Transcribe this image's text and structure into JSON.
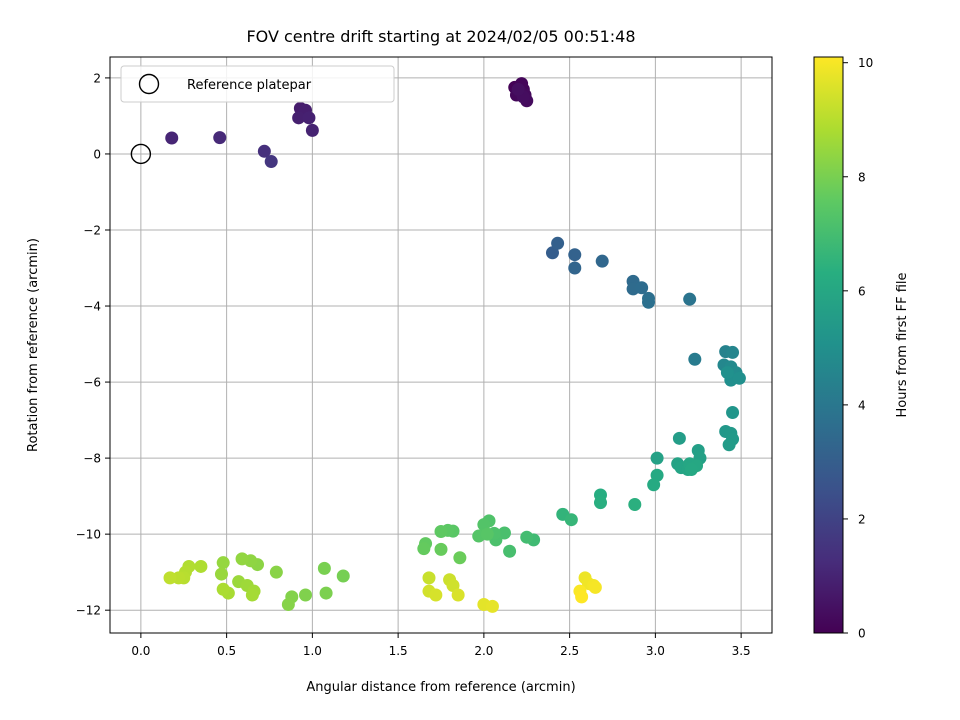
{
  "chart_data": {
    "type": "scatter",
    "title": "FOV centre drift starting at 2024/02/05 00:51:48",
    "xlabel": "Angular distance from reference (arcmin)",
    "ylabel": "Rotation from reference (arcmin)",
    "xlim": [
      -0.18,
      3.68
    ],
    "ylim": [
      -12.6,
      2.55
    ],
    "xticks": [
      0.0,
      0.5,
      1.0,
      1.5,
      2.0,
      2.5,
      3.0,
      3.5
    ],
    "xtick_labels": [
      "0.0",
      "0.5",
      "1.0",
      "1.5",
      "2.0",
      "2.5",
      "3.0",
      "3.5"
    ],
    "yticks": [
      2,
      0,
      -2,
      -4,
      -6,
      -8,
      -10,
      -12
    ],
    "ytick_labels": [
      "2",
      "0",
      "−2",
      "−4",
      "−6",
      "−8",
      "−10",
      "−12"
    ],
    "grid": true,
    "colorbar": {
      "label": "Hours from first FF file",
      "colormap": "viridis",
      "range": [
        0,
        10.1
      ],
      "ticks": [
        0,
        2,
        4,
        6,
        8,
        10
      ],
      "tick_labels": [
        "0",
        "2",
        "4",
        "6",
        "8",
        "10"
      ]
    },
    "legend": {
      "position": "top-left",
      "entries": [
        {
          "label": "Reference platepar",
          "marker": "open-circle"
        }
      ]
    },
    "reference_point": {
      "x": 0.0,
      "y": 0.0
    },
    "points": [
      {
        "x": 2.18,
        "y": 1.75,
        "c": 0.05
      },
      {
        "x": 2.2,
        "y": 1.6,
        "c": 0.1
      },
      {
        "x": 2.22,
        "y": 1.85,
        "c": 0.15
      },
      {
        "x": 2.23,
        "y": 1.7,
        "c": 0.18
      },
      {
        "x": 2.19,
        "y": 1.55,
        "c": 0.2
      },
      {
        "x": 2.24,
        "y": 1.55,
        "c": 0.25
      },
      {
        "x": 2.21,
        "y": 1.65,
        "c": 0.28
      },
      {
        "x": 2.25,
        "y": 1.4,
        "c": 0.3
      },
      {
        "x": 2.23,
        "y": 1.5,
        "c": 0.35
      },
      {
        "x": 2.2,
        "y": 1.7,
        "c": 0.4
      },
      {
        "x": 0.93,
        "y": 1.2,
        "c": 0.8
      },
      {
        "x": 0.96,
        "y": 1.15,
        "c": 0.85
      },
      {
        "x": 0.92,
        "y": 0.95,
        "c": 0.9
      },
      {
        "x": 0.98,
        "y": 0.95,
        "c": 0.95
      },
      {
        "x": 1.0,
        "y": 0.62,
        "c": 1.0
      },
      {
        "x": 0.18,
        "y": 0.42,
        "c": 1.1
      },
      {
        "x": 0.46,
        "y": 0.43,
        "c": 1.2
      },
      {
        "x": 0.72,
        "y": 0.07,
        "c": 1.4
      },
      {
        "x": 0.76,
        "y": -0.2,
        "c": 1.6
      },
      {
        "x": 2.4,
        "y": -2.6,
        "c": 3.0
      },
      {
        "x": 2.43,
        "y": -2.35,
        "c": 3.1
      },
      {
        "x": 2.53,
        "y": -2.65,
        "c": 3.2
      },
      {
        "x": 2.53,
        "y": -3.0,
        "c": 3.3
      },
      {
        "x": 2.69,
        "y": -2.82,
        "c": 3.4
      },
      {
        "x": 2.87,
        "y": -3.35,
        "c": 3.5
      },
      {
        "x": 2.87,
        "y": -3.55,
        "c": 3.55
      },
      {
        "x": 2.92,
        "y": -3.52,
        "c": 3.6
      },
      {
        "x": 2.96,
        "y": -3.8,
        "c": 3.7
      },
      {
        "x": 2.96,
        "y": -3.9,
        "c": 3.75
      },
      {
        "x": 3.2,
        "y": -3.82,
        "c": 3.9
      },
      {
        "x": 3.23,
        "y": -5.4,
        "c": 4.2
      },
      {
        "x": 3.41,
        "y": -5.2,
        "c": 4.5
      },
      {
        "x": 3.45,
        "y": -5.22,
        "c": 4.6
      },
      {
        "x": 3.4,
        "y": -5.55,
        "c": 4.7
      },
      {
        "x": 3.44,
        "y": -5.6,
        "c": 4.8
      },
      {
        "x": 3.47,
        "y": -5.75,
        "c": 4.9
      },
      {
        "x": 3.44,
        "y": -5.95,
        "c": 5.0
      },
      {
        "x": 3.49,
        "y": -5.9,
        "c": 5.05
      },
      {
        "x": 3.42,
        "y": -5.75,
        "c": 5.1
      },
      {
        "x": 3.45,
        "y": -6.8,
        "c": 5.3
      },
      {
        "x": 3.41,
        "y": -7.3,
        "c": 5.4
      },
      {
        "x": 3.44,
        "y": -7.35,
        "c": 5.45
      },
      {
        "x": 3.45,
        "y": -7.5,
        "c": 5.5
      },
      {
        "x": 3.43,
        "y": -7.65,
        "c": 5.55
      },
      {
        "x": 3.14,
        "y": -7.48,
        "c": 5.6
      },
      {
        "x": 3.25,
        "y": -7.8,
        "c": 5.7
      },
      {
        "x": 3.26,
        "y": -8.0,
        "c": 5.75
      },
      {
        "x": 3.01,
        "y": -8.0,
        "c": 5.8
      },
      {
        "x": 3.13,
        "y": -8.15,
        "c": 5.85
      },
      {
        "x": 3.15,
        "y": -8.25,
        "c": 5.9
      },
      {
        "x": 3.19,
        "y": -8.3,
        "c": 5.95
      },
      {
        "x": 3.2,
        "y": -8.15,
        "c": 6.0
      },
      {
        "x": 3.24,
        "y": -8.2,
        "c": 6.05
      },
      {
        "x": 3.21,
        "y": -8.3,
        "c": 6.1
      },
      {
        "x": 3.01,
        "y": -8.45,
        "c": 6.15
      },
      {
        "x": 2.99,
        "y": -8.7,
        "c": 6.2
      },
      {
        "x": 2.68,
        "y": -8.97,
        "c": 6.3
      },
      {
        "x": 2.68,
        "y": -9.17,
        "c": 6.35
      },
      {
        "x": 2.88,
        "y": -9.22,
        "c": 6.4
      },
      {
        "x": 2.46,
        "y": -9.48,
        "c": 6.6
      },
      {
        "x": 2.51,
        "y": -9.62,
        "c": 6.7
      },
      {
        "x": 2.29,
        "y": -10.15,
        "c": 6.9
      },
      {
        "x": 2.25,
        "y": -10.08,
        "c": 7.0
      },
      {
        "x": 2.15,
        "y": -10.45,
        "c": 7.1
      },
      {
        "x": 2.12,
        "y": -9.97,
        "c": 7.15
      },
      {
        "x": 2.07,
        "y": -10.15,
        "c": 7.2
      },
      {
        "x": 2.06,
        "y": -9.98,
        "c": 7.25
      },
      {
        "x": 2.03,
        "y": -9.65,
        "c": 7.3
      },
      {
        "x": 2.0,
        "y": -9.75,
        "c": 7.35
      },
      {
        "x": 1.97,
        "y": -10.05,
        "c": 7.4
      },
      {
        "x": 2.02,
        "y": -10.0,
        "c": 7.45
      },
      {
        "x": 1.82,
        "y": -9.92,
        "c": 7.5
      },
      {
        "x": 1.79,
        "y": -9.9,
        "c": 7.55
      },
      {
        "x": 1.75,
        "y": -9.93,
        "c": 7.6
      },
      {
        "x": 1.66,
        "y": -10.25,
        "c": 7.65
      },
      {
        "x": 1.65,
        "y": -10.38,
        "c": 7.7
      },
      {
        "x": 1.75,
        "y": -10.4,
        "c": 7.75
      },
      {
        "x": 1.86,
        "y": -10.62,
        "c": 7.8
      },
      {
        "x": 1.18,
        "y": -11.1,
        "c": 8.0
      },
      {
        "x": 1.07,
        "y": -10.9,
        "c": 8.05
      },
      {
        "x": 1.08,
        "y": -11.55,
        "c": 8.1
      },
      {
        "x": 0.96,
        "y": -11.6,
        "c": 8.15
      },
      {
        "x": 0.88,
        "y": -11.65,
        "c": 8.2
      },
      {
        "x": 0.86,
        "y": -11.85,
        "c": 8.25
      },
      {
        "x": 0.79,
        "y": -11.0,
        "c": 8.3
      },
      {
        "x": 0.68,
        "y": -10.8,
        "c": 8.35
      },
      {
        "x": 0.64,
        "y": -10.7,
        "c": 8.4
      },
      {
        "x": 0.59,
        "y": -10.65,
        "c": 8.45
      },
      {
        "x": 0.48,
        "y": -10.75,
        "c": 8.5
      },
      {
        "x": 0.47,
        "y": -11.05,
        "c": 8.55
      },
      {
        "x": 0.57,
        "y": -11.25,
        "c": 8.6
      },
      {
        "x": 0.62,
        "y": -11.35,
        "c": 8.65
      },
      {
        "x": 0.66,
        "y": -11.5,
        "c": 8.7
      },
      {
        "x": 0.65,
        "y": -11.6,
        "c": 8.75
      },
      {
        "x": 0.51,
        "y": -11.55,
        "c": 8.8
      },
      {
        "x": 0.48,
        "y": -11.45,
        "c": 8.85
      },
      {
        "x": 0.35,
        "y": -10.85,
        "c": 8.9
      },
      {
        "x": 0.28,
        "y": -10.85,
        "c": 8.95
      },
      {
        "x": 0.26,
        "y": -11.0,
        "c": 9.0
      },
      {
        "x": 0.25,
        "y": -11.15,
        "c": 9.05
      },
      {
        "x": 0.22,
        "y": -11.15,
        "c": 9.1
      },
      {
        "x": 0.17,
        "y": -11.15,
        "c": 9.15
      },
      {
        "x": 1.68,
        "y": -11.15,
        "c": 9.3
      },
      {
        "x": 1.8,
        "y": -11.2,
        "c": 9.35
      },
      {
        "x": 1.82,
        "y": -11.35,
        "c": 9.4
      },
      {
        "x": 1.68,
        "y": -11.5,
        "c": 9.45
      },
      {
        "x": 1.72,
        "y": -11.6,
        "c": 9.5
      },
      {
        "x": 1.85,
        "y": -11.6,
        "c": 9.55
      },
      {
        "x": 2.0,
        "y": -11.85,
        "c": 9.7
      },
      {
        "x": 2.05,
        "y": -11.9,
        "c": 9.75
      },
      {
        "x": 2.59,
        "y": -11.15,
        "c": 9.85
      },
      {
        "x": 2.61,
        "y": -11.3,
        "c": 9.9
      },
      {
        "x": 2.64,
        "y": -11.35,
        "c": 9.95
      },
      {
        "x": 2.65,
        "y": -11.4,
        "c": 10.0
      },
      {
        "x": 2.56,
        "y": -11.5,
        "c": 10.05
      },
      {
        "x": 2.57,
        "y": -11.65,
        "c": 10.1
      }
    ]
  }
}
